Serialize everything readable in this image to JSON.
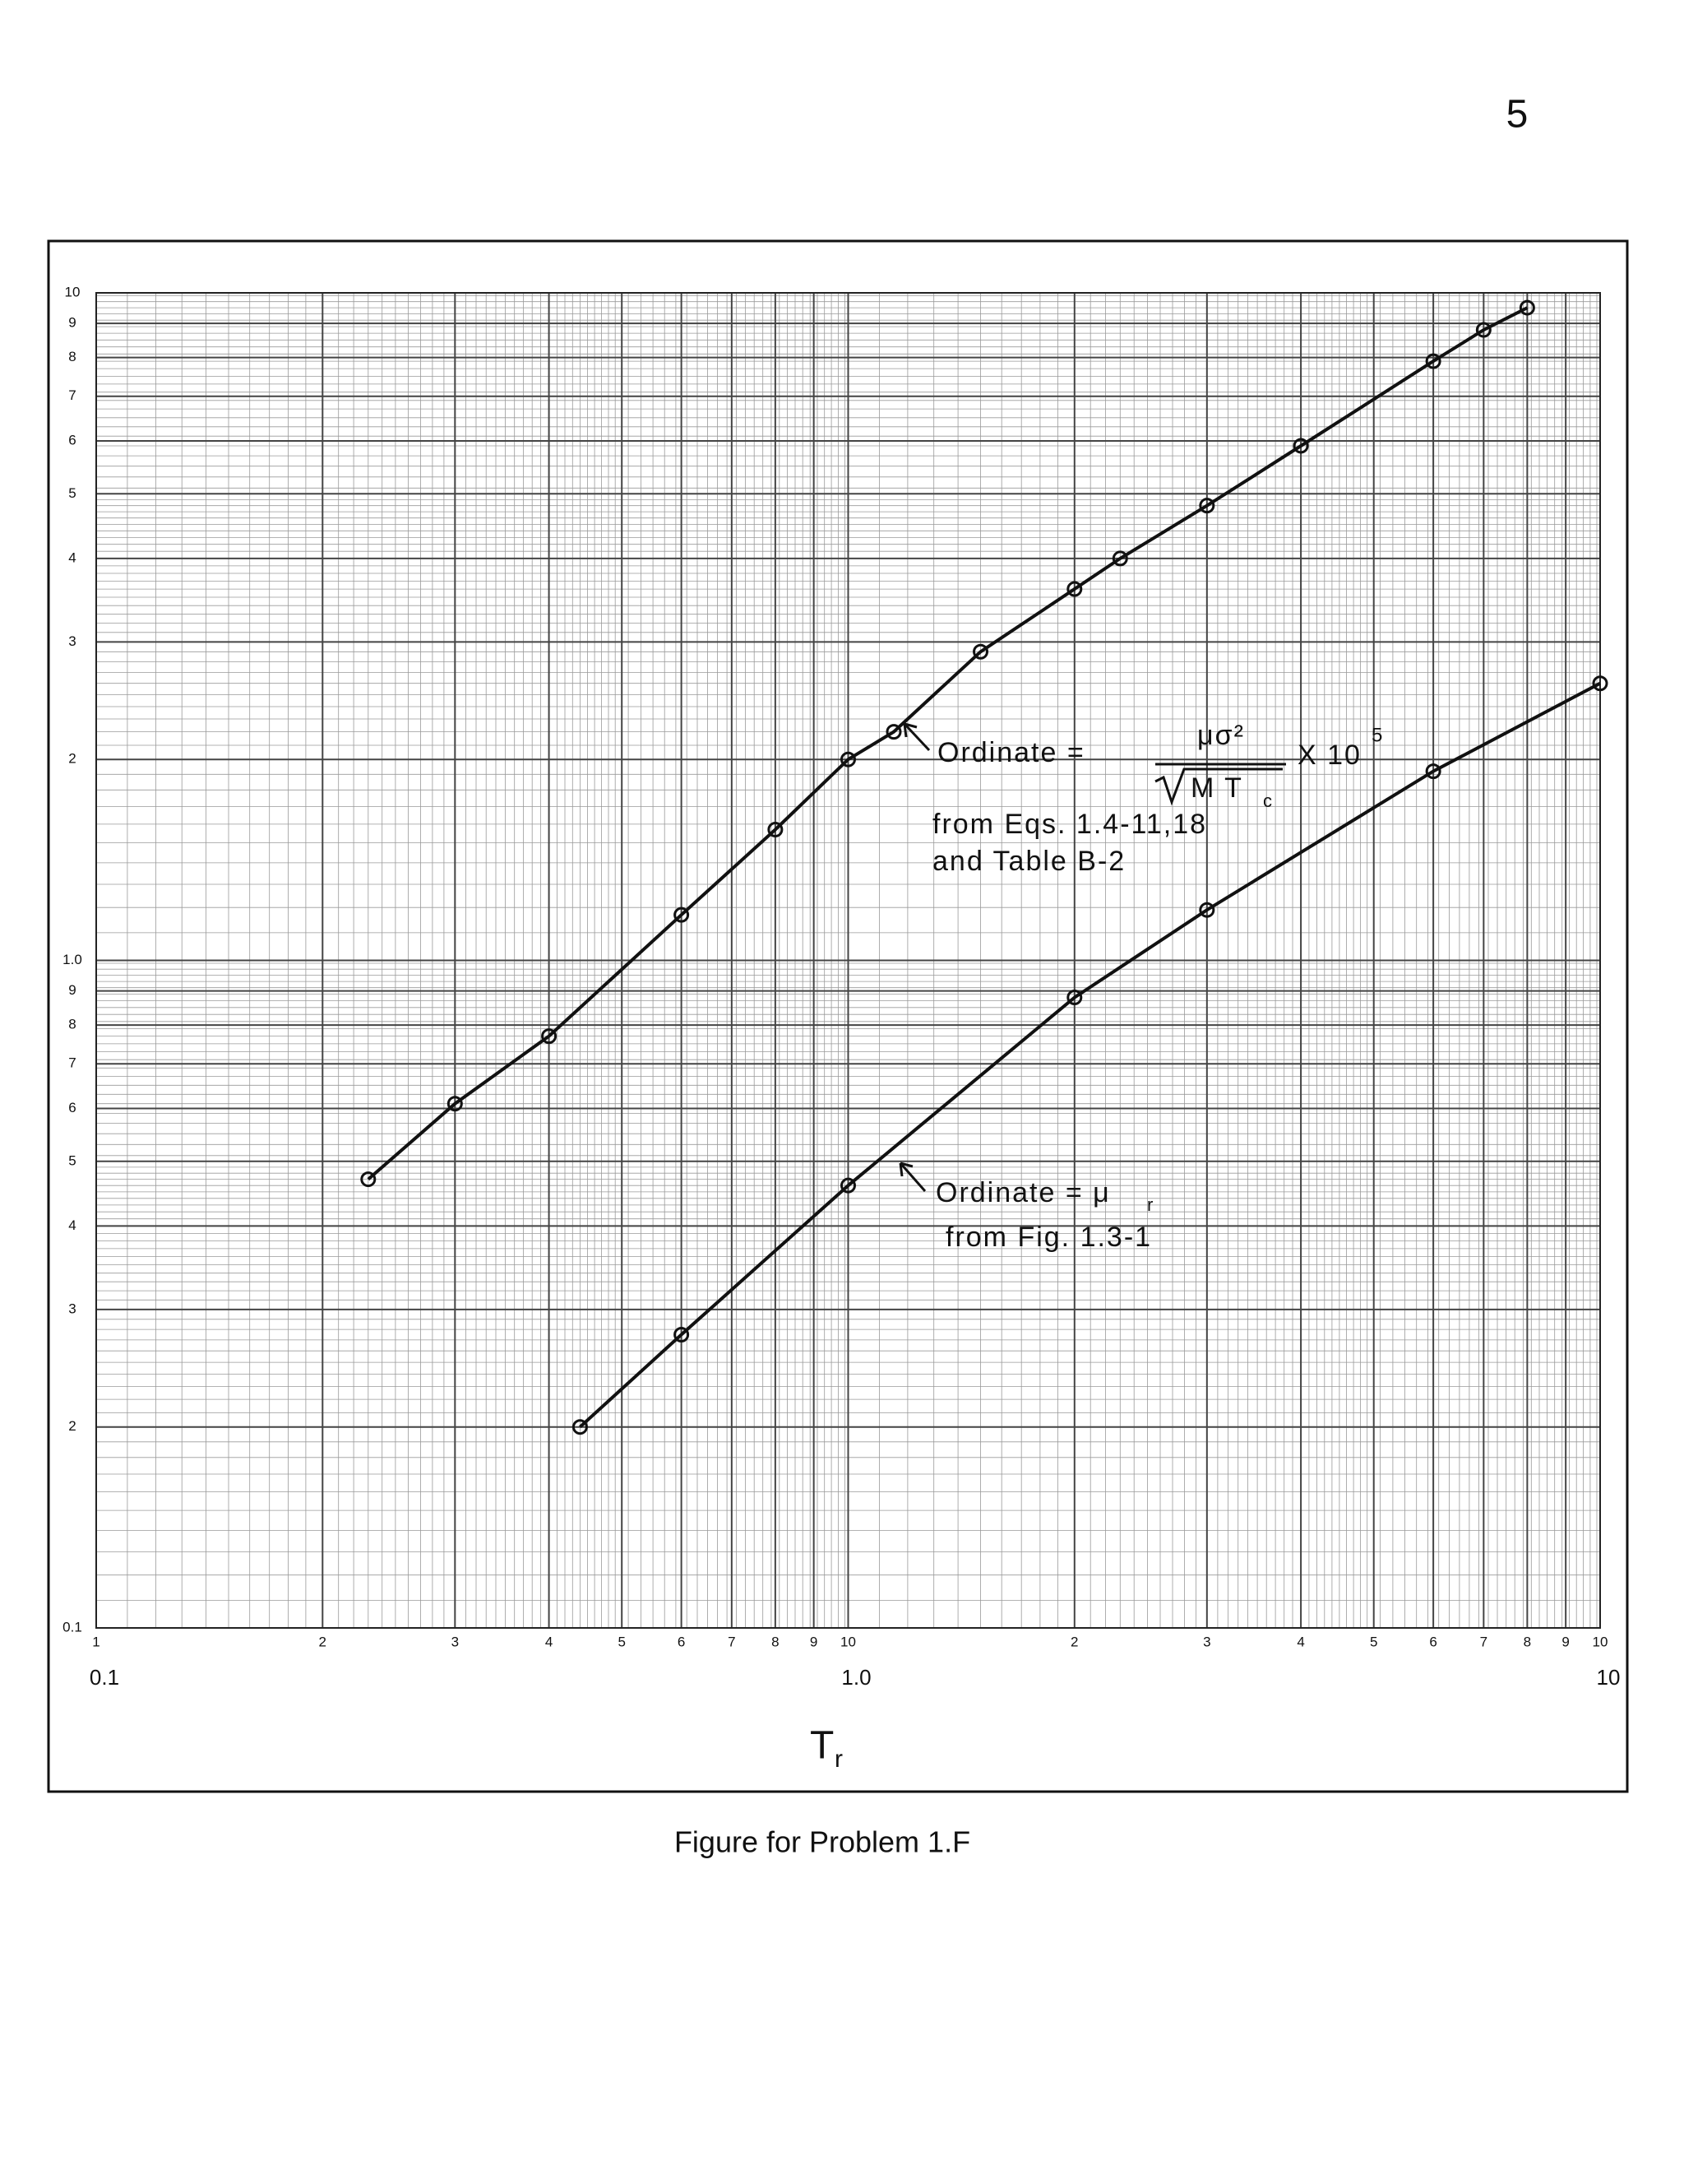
{
  "page_number": "5",
  "caption": "Figure for Problem 1.F",
  "chart_data": {
    "type": "line",
    "xscale": "log",
    "yscale": "log",
    "xlim": [
      0.1,
      10
    ],
    "ylim": [
      0.1,
      10
    ],
    "xticks": [
      {
        "value": 0.1,
        "label": "1"
      },
      {
        "value": 0.2,
        "label": "2"
      },
      {
        "value": 0.3,
        "label": "3"
      },
      {
        "value": 0.4,
        "label": "4"
      },
      {
        "value": 0.5,
        "label": "5"
      },
      {
        "value": 0.6,
        "label": "6"
      },
      {
        "value": 0.7,
        "label": "7"
      },
      {
        "value": 0.8,
        "label": "8"
      },
      {
        "value": 0.9,
        "label": "9"
      },
      {
        "value": 1,
        "label": "10"
      },
      2,
      3,
      4,
      5,
      6,
      7,
      8,
      9,
      10
    ],
    "xticks2": [
      0.1,
      {
        "value": 1,
        "label": "1.0"
      },
      10
    ],
    "yticks": [
      0.1,
      {
        "value": 0.2,
        "label": "2"
      },
      {
        "value": 0.3,
        "label": "3"
      },
      {
        "value": 0.4,
        "label": "4"
      },
      {
        "value": 0.5,
        "label": "5"
      },
      {
        "value": 0.6,
        "label": "6"
      },
      {
        "value": 0.7,
        "label": "7"
      },
      {
        "value": 0.8,
        "label": "8"
      },
      {
        "value": 0.9,
        "label": "9"
      },
      {
        "value": 1,
        "label": "1.0"
      },
      2,
      3,
      4,
      5,
      6,
      7,
      8,
      9,
      10
    ],
    "grid": true,
    "xlabel": "T",
    "xlabel_sub": "r",
    "series": [
      {
        "color": "#111111",
        "x": [
          0.23,
          0.3,
          0.4,
          0.6,
          0.8,
          1.0,
          1.15,
          1.5,
          2.0,
          2.3,
          3.0,
          4.0,
          6.0,
          7.0,
          8.0
        ],
        "values": [
          0.47,
          0.61,
          0.77,
          1.17,
          1.57,
          2.0,
          2.2,
          2.9,
          3.6,
          4.0,
          4.8,
          5.9,
          7.9,
          8.8,
          9.5
        ]
      },
      {
        "color": "#111111",
        "x": [
          0.44,
          0.6,
          1.0,
          2.0,
          3.0,
          6.0,
          10
        ],
        "values": [
          0.2,
          0.275,
          0.46,
          0.88,
          1.19,
          1.92,
          2.6
        ]
      }
    ],
    "annotations": {
      "upper": {
        "lead": "Ordinate =",
        "numerator": "μσ²",
        "denominator": "M T",
        "denominator_sub": "c",
        "factor": "X 10",
        "exponent": "5",
        "line2": "from Eqs. 1.4-11,18",
        "line3": "and Table B-2"
      },
      "lower": {
        "lead": "Ordinate = μ",
        "lead_sub": "r",
        "line2": "from Fig. 1.3-1"
      }
    }
  }
}
